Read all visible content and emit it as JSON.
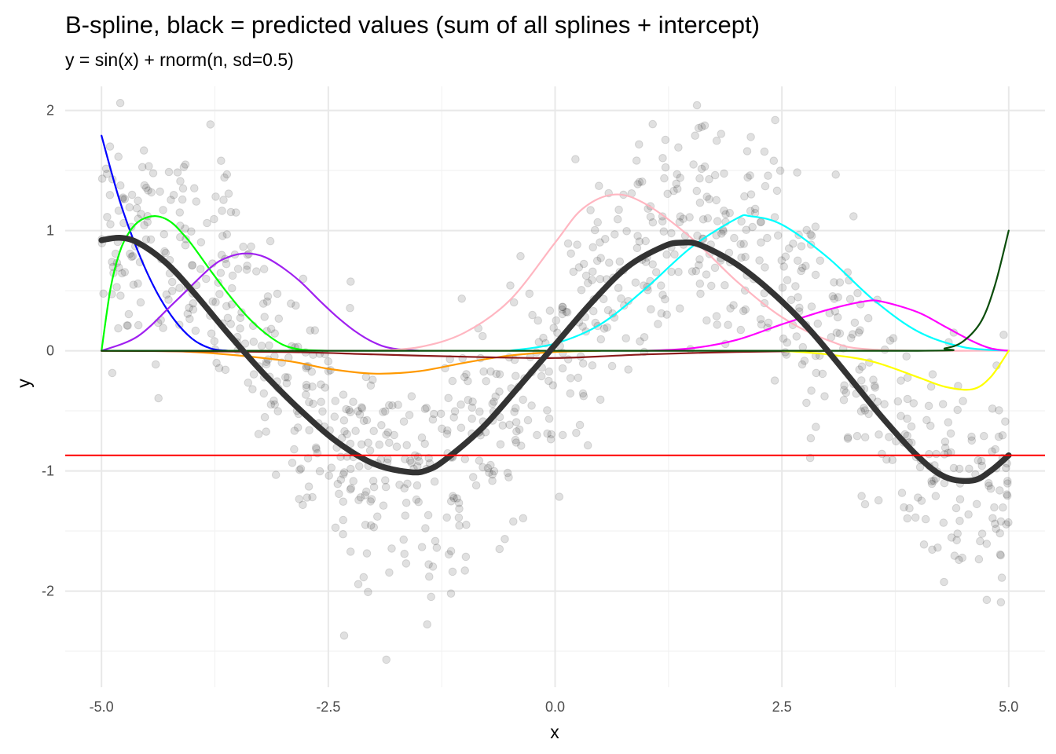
{
  "chart_data": {
    "type": "line",
    "title": "B-spline, black = predicted values (sum of all splines + intercept)",
    "subtitle": "y = sin(x) + rnorm(n, sd=0.5)",
    "xlabel": "x",
    "ylabel": "y",
    "xlim": [
      -5.4,
      5.4
    ],
    "ylim": [
      -2.8,
      2.2
    ],
    "x_ticks": [
      -5.0,
      -2.5,
      0.0,
      2.5,
      5.0
    ],
    "x_tick_labels": [
      "-5.0",
      "-2.5",
      "0.0",
      "2.5",
      "5.0"
    ],
    "y_ticks": [
      -2,
      -1,
      0,
      1,
      2
    ],
    "y_tick_labels": [
      "-2",
      "-1",
      "0",
      "1",
      "2"
    ],
    "grid": true,
    "intercept": -0.87,
    "points": {
      "name": "observations",
      "color": "#000000",
      "opacity": 0.12,
      "n": 1000,
      "noise_sd": 0.5,
      "model": "sin(x)",
      "x_range": [
        -5,
        5
      ]
    },
    "series": [
      {
        "color": "#0000ff",
        "x": [
          -5.0,
          -4.8,
          -4.6,
          -4.4,
          -4.2,
          -4.0,
          -3.8,
          -3.6
        ],
        "y": [
          1.79,
          1.25,
          0.83,
          0.5,
          0.26,
          0.1,
          0.02,
          0.0
        ]
      },
      {
        "color": "#00ff00",
        "x": [
          -5.0,
          -4.9,
          -4.8,
          -4.7,
          -4.6,
          -4.5,
          -4.4,
          -4.3,
          -4.2,
          -4.1,
          -4.0,
          -3.8,
          -3.6,
          -3.4,
          -3.2,
          -3.0,
          -2.8,
          -2.5
        ],
        "y": [
          0.0,
          0.52,
          0.82,
          0.98,
          1.07,
          1.11,
          1.12,
          1.1,
          1.05,
          0.97,
          0.88,
          0.67,
          0.47,
          0.29,
          0.15,
          0.05,
          0.01,
          0.0
        ]
      },
      {
        "color": "#a020f0",
        "x": [
          -5.0,
          -4.6,
          -4.2,
          -3.8,
          -3.6,
          -3.4,
          -3.2,
          -3.0,
          -2.8,
          -2.6,
          -2.4,
          -2.2,
          -2.0,
          -1.8,
          -1.5
        ],
        "y": [
          0.0,
          0.12,
          0.4,
          0.69,
          0.78,
          0.81,
          0.78,
          0.69,
          0.57,
          0.42,
          0.28,
          0.16,
          0.07,
          0.02,
          0.0
        ]
      },
      {
        "color": "#ff9900",
        "x": [
          -5.0,
          -4.0,
          -3.0,
          -2.5,
          -2.0,
          -1.5,
          -1.0,
          -0.5,
          0.0,
          0.5
        ],
        "y": [
          0.0,
          -0.01,
          -0.08,
          -0.15,
          -0.19,
          -0.17,
          -0.1,
          -0.04,
          -0.01,
          0.0
        ]
      },
      {
        "color": "#8b1a1a",
        "x": [
          -5.0,
          -3.0,
          -2.0,
          -1.0,
          0.0,
          1.0,
          2.0,
          3.0
        ],
        "y": [
          0.0,
          -0.01,
          -0.03,
          -0.05,
          -0.06,
          -0.03,
          -0.01,
          0.0
        ]
      },
      {
        "color": "#ffb6c1",
        "x": [
          -2.0,
          -1.5,
          -1.0,
          -0.5,
          0.0,
          0.3,
          0.65,
          1.0,
          1.5,
          2.0,
          2.5,
          3.0,
          3.5,
          5.0
        ],
        "y": [
          0.0,
          0.03,
          0.15,
          0.42,
          0.9,
          1.18,
          1.3,
          1.22,
          0.94,
          0.58,
          0.28,
          0.09,
          0.01,
          0.0
        ]
      },
      {
        "color": "#00ffff",
        "x": [
          -0.5,
          0.0,
          0.5,
          1.0,
          1.5,
          2.0,
          2.15,
          2.5,
          3.0,
          3.5,
          4.0,
          4.5,
          5.0
        ],
        "y": [
          0.0,
          0.06,
          0.22,
          0.52,
          0.86,
          1.1,
          1.12,
          1.05,
          0.78,
          0.43,
          0.16,
          0.03,
          0.0
        ]
      },
      {
        "color": "#ff00ff",
        "x": [
          1.0,
          1.5,
          2.0,
          2.5,
          3.0,
          3.4,
          3.6,
          4.0,
          4.3,
          4.6,
          4.8,
          5.0
        ],
        "y": [
          0.0,
          0.02,
          0.09,
          0.22,
          0.34,
          0.41,
          0.41,
          0.32,
          0.2,
          0.08,
          0.02,
          0.0
        ]
      },
      {
        "color": "#ffff00",
        "x": [
          2.5,
          3.0,
          3.5,
          4.0,
          4.3,
          4.6,
          4.8,
          5.0
        ],
        "y": [
          0.0,
          -0.03,
          -0.09,
          -0.22,
          -0.3,
          -0.32,
          -0.22,
          0.0
        ]
      },
      {
        "color": "#0b4d0b",
        "x": [
          -5.0,
          0.0,
          4.0,
          4.3,
          4.5,
          4.7,
          4.85,
          5.0
        ],
        "y": [
          0.0,
          0.0,
          0.0,
          0.02,
          0.08,
          0.25,
          0.55,
          1.0
        ]
      },
      {
        "color": "#333333",
        "x": [
          -5.0,
          -4.8,
          -4.6,
          -4.3,
          -4.0,
          -3.6,
          -3.2,
          -2.8,
          -2.4,
          -2.0,
          -1.6,
          -1.4,
          -1.2,
          -0.8,
          -0.4,
          0.0,
          0.4,
          0.8,
          1.2,
          1.4,
          1.6,
          2.0,
          2.4,
          2.8,
          3.2,
          3.6,
          4.0,
          4.3,
          4.6,
          4.8,
          5.0
        ],
        "y": [
          0.92,
          0.94,
          0.9,
          0.74,
          0.5,
          0.14,
          -0.2,
          -0.5,
          -0.76,
          -0.94,
          -1.01,
          -0.99,
          -0.9,
          -0.64,
          -0.3,
          0.05,
          0.4,
          0.7,
          0.87,
          0.9,
          0.88,
          0.72,
          0.48,
          0.18,
          -0.18,
          -0.55,
          -0.88,
          -1.05,
          -1.08,
          -1.0,
          -0.87
        ]
      }
    ],
    "hline": {
      "y": -0.87,
      "color": "#ff0000"
    },
    "colors": {
      "background": "#ffffff",
      "grid_major": "#e8e8e8",
      "grid_minor": "#f2f2f2",
      "tick_text": "#4d4d4d"
    }
  }
}
